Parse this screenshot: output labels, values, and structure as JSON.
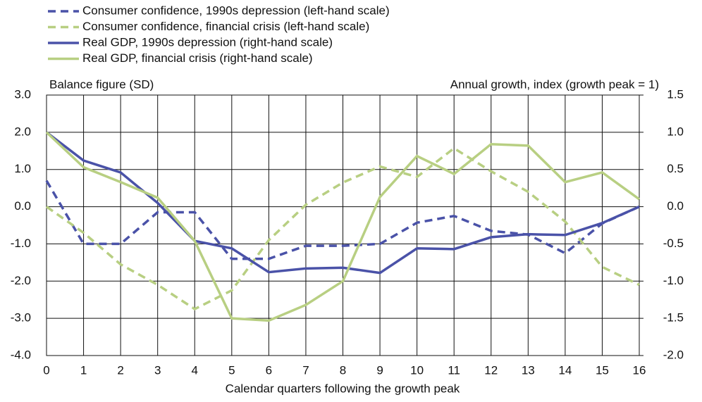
{
  "chart_data": {
    "type": "line",
    "y_label": "Balance figure (SD)",
    "y2_label": "Annual growth, index (growth peak = 1)",
    "x_label": "Calendar quarters following the growth peak",
    "x": [
      0,
      1,
      2,
      3,
      4,
      5,
      6,
      7,
      8,
      9,
      10,
      11,
      12,
      13,
      14,
      15,
      16
    ],
    "xlim": [
      0,
      16
    ],
    "xticks": [
      0,
      1,
      2,
      3,
      4,
      5,
      6,
      7,
      8,
      9,
      10,
      11,
      12,
      13,
      14,
      15,
      16
    ],
    "ylim": [
      -4,
      3
    ],
    "yticks": [
      {
        "value": 3,
        "label": "3.0"
      },
      {
        "value": 2,
        "label": "2.0"
      },
      {
        "value": 1,
        "label": "1.0"
      },
      {
        "value": 0,
        "label": "0.0"
      },
      {
        "value": -1,
        "label": "-1.0"
      },
      {
        "value": -2,
        "label": "-2.0"
      },
      {
        "value": -3,
        "label": "-3.0"
      },
      {
        "value": -4,
        "label": "-4.0"
      }
    ],
    "y2lim": [
      -2,
      1.5
    ],
    "y2ticks": [
      1.5,
      {
        "value": 1,
        "label": "1.0"
      },
      0.5,
      {
        "value": 0,
        "label": "0.0"
      },
      -0.5,
      {
        "value": -1,
        "label": "-1.0"
      },
      -1.5,
      {
        "value": -2,
        "label": "-2.0"
      }
    ],
    "grid": true,
    "series": [
      {
        "name": "Consumer confidence, 1990s depression (left-hand scale)",
        "color": "#4a52a8",
        "dashed": true,
        "values": [
          0.7,
          -1.0,
          -1.0,
          -0.15,
          -0.15,
          -1.4,
          -1.4,
          -1.05,
          -1.05,
          -1.0,
          -0.43,
          -0.25,
          -0.65,
          -0.75,
          -1.25,
          -0.45,
          0.0
        ]
      },
      {
        "name": "Consumer confidence, financial crisis (left-hand scale)",
        "color": "#b8cf82",
        "dashed": true,
        "values": [
          0.0,
          -0.7,
          -1.55,
          -2.1,
          -2.75,
          -2.25,
          -0.9,
          0.05,
          0.65,
          1.08,
          0.8,
          1.57,
          0.95,
          0.4,
          -0.4,
          -1.62,
          -2.1
        ]
      },
      {
        "name": "Real GDP, 1990s depression (right-hand scale)",
        "color": "#4a52a8",
        "dashed": false,
        "axis": "y2",
        "values": [
          1.0,
          0.62,
          0.46,
          0.05,
          -0.46,
          -0.56,
          -0.88,
          -0.83,
          -0.82,
          -0.89,
          -0.56,
          -0.57,
          -0.41,
          -0.37,
          -0.38,
          -0.22,
          0.0
        ]
      },
      {
        "name": "Real GDP, financial crisis (right-hand scale)",
        "color": "#b8cf82",
        "dashed": false,
        "axis": "y2",
        "values": [
          1.0,
          0.53,
          0.33,
          0.12,
          -0.46,
          -1.5,
          -1.53,
          -1.32,
          -1.0,
          0.13,
          0.68,
          0.44,
          0.84,
          0.82,
          0.33,
          0.46,
          0.1
        ]
      }
    ]
  }
}
